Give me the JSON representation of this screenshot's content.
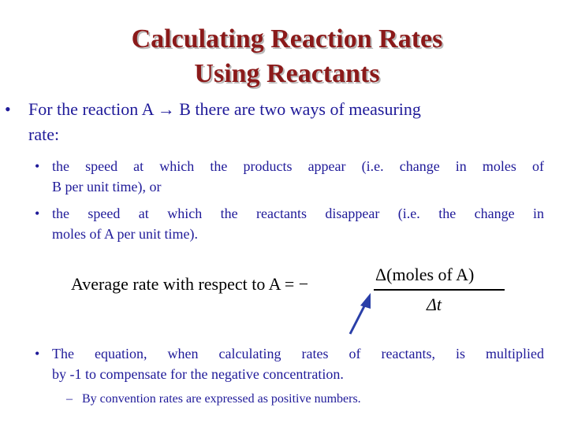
{
  "title": {
    "line1": "Calculating Reaction Rates",
    "line2": "Using Reactants"
  },
  "colors": {
    "title": "#8b1a1a",
    "body_text": "#1f1a99",
    "equation": "#000000",
    "arrow": "#2a3fa8"
  },
  "bullets": {
    "main_line1": "For the reaction A → B there are two ways of measuring",
    "main_line2": "rate:",
    "sub1_line1": "the speed at which the products appear (i.e. change in moles of",
    "sub1_line2": "B per unit time), or",
    "sub2_line1": "the speed at which the reactants disappear (i.e. the change in",
    "sub2_line2": "moles of A per unit time).",
    "sub3_line1": "The equation, when calculating rates of reactants, is multiplied",
    "sub3_line2": "by -1 to compensate for the negative concentration.",
    "sub4": "By convention rates are expressed as positive numbers."
  },
  "equation": {
    "lhs": "Average rate with respect to A = −",
    "numerator": "Δ(moles of A)",
    "denominator": "Δt"
  },
  "icons": {
    "bullet_main": "bullet-dot",
    "bullet_sub": "bullet-dot",
    "bullet_dash": "dash",
    "arrow": "arrow-up-right"
  }
}
